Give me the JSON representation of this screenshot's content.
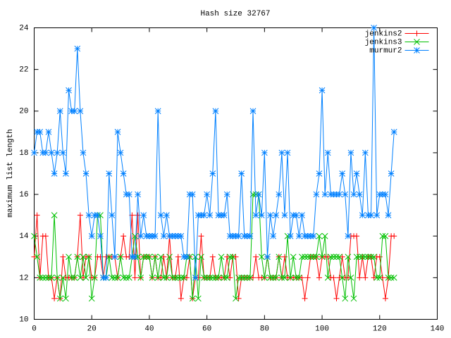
{
  "chart_data": {
    "type": "line",
    "title": "Hash size 32767",
    "ylabel": "maximum list length",
    "x": [
      0,
      1,
      2,
      3,
      4,
      5,
      6,
      7,
      8,
      9,
      10,
      11,
      12,
      13,
      14,
      15,
      16,
      17,
      18,
      19,
      20,
      21,
      22,
      23,
      24,
      25,
      26,
      27,
      28,
      29,
      30,
      31,
      32,
      33,
      34,
      35,
      36,
      37,
      38,
      39,
      40,
      41,
      42,
      43,
      44,
      45,
      46,
      47,
      48,
      49,
      50,
      51,
      52,
      53,
      54,
      55,
      56,
      57,
      58,
      59,
      60,
      61,
      62,
      63,
      64,
      65,
      66,
      67,
      68,
      69,
      70,
      71,
      72,
      73,
      74,
      75,
      76,
      77,
      78,
      79,
      80,
      81,
      82,
      83,
      84,
      85,
      86,
      87,
      88,
      89,
      90,
      91,
      92,
      93,
      94,
      95,
      96,
      97,
      98,
      99,
      100,
      101,
      102,
      103,
      104,
      105,
      106,
      107,
      108,
      109,
      110,
      111,
      112,
      113,
      114,
      115,
      116,
      117,
      118,
      119,
      120,
      121,
      122,
      123,
      124,
      125
    ],
    "xlim": [
      0,
      140
    ],
    "xticks": [
      0,
      20,
      40,
      60,
      80,
      100,
      120,
      140
    ],
    "ylim": [
      10,
      24
    ],
    "yticks": [
      10,
      12,
      14,
      16,
      18,
      20,
      22,
      24
    ],
    "legend": "top-right",
    "series": [
      {
        "name": "jenkins2",
        "color": "#ff0000",
        "marker": "plus",
        "values": [
          13,
          15,
          12,
          14,
          14,
          12,
          12,
          11,
          12,
          11,
          13,
          12,
          12,
          12,
          12,
          13,
          15,
          12,
          13,
          13,
          12,
          12,
          13,
          13,
          12,
          13,
          13,
          13,
          13,
          12,
          13,
          14,
          13,
          13,
          15,
          12,
          15,
          12,
          13,
          13,
          13,
          12,
          13,
          12,
          12,
          13,
          12,
          14,
          12,
          12,
          13,
          11,
          12,
          12,
          13,
          11,
          12,
          12,
          14,
          12,
          12,
          12,
          13,
          12,
          12,
          12,
          12,
          13,
          12,
          13,
          13,
          11,
          12,
          12,
          12,
          12,
          12,
          13,
          12,
          12,
          12,
          13,
          12,
          12,
          12,
          13,
          12,
          13,
          12,
          12,
          12,
          12,
          12,
          12,
          11,
          12,
          13,
          13,
          13,
          12,
          13,
          13,
          13,
          12,
          12,
          11,
          12,
          13,
          12,
          12,
          14,
          14,
          14,
          12,
          13,
          12,
          13,
          13,
          12,
          13,
          13,
          12,
          11,
          12,
          14,
          14
        ]
      },
      {
        "name": "jenkins3",
        "color": "#00c000",
        "marker": "cross",
        "values": [
          14,
          13,
          12,
          12,
          12,
          12,
          12,
          15,
          12,
          11,
          12,
          11,
          13,
          12,
          12,
          13,
          12,
          13,
          12,
          13,
          11,
          12,
          15,
          15,
          12,
          12,
          13,
          12,
          12,
          12,
          13,
          12,
          12,
          12,
          13,
          14,
          13,
          12,
          13,
          13,
          13,
          12,
          13,
          12,
          13,
          12,
          12,
          13,
          12,
          12,
          12,
          12,
          12,
          13,
          13,
          11,
          13,
          11,
          13,
          12,
          12,
          12,
          12,
          12,
          12,
          13,
          12,
          12,
          13,
          13,
          11,
          12,
          12,
          12,
          12,
          12,
          16,
          16,
          16,
          13,
          12,
          13,
          12,
          12,
          12,
          13,
          12,
          12,
          14,
          12,
          13,
          12,
          12,
          13,
          13,
          13,
          13,
          13,
          13,
          14,
          13,
          14,
          12,
          13,
          13,
          13,
          13,
          12,
          11,
          13,
          12,
          11,
          13,
          13,
          13,
          13,
          13,
          13,
          13,
          12,
          12,
          14,
          14,
          12,
          12,
          12
        ]
      },
      {
        "name": "murmur2",
        "color": "#0080ff",
        "marker": "star",
        "values": [
          18,
          19,
          19,
          18,
          18,
          19,
          18,
          17,
          18,
          20,
          18,
          17,
          21,
          20,
          20,
          23,
          20,
          18,
          17,
          15,
          14,
          15,
          15,
          14,
          12,
          12,
          17,
          15,
          13,
          19,
          18,
          17,
          16,
          16,
          13,
          13,
          16,
          14,
          15,
          14,
          14,
          14,
          14,
          20,
          15,
          14,
          15,
          14,
          14,
          14,
          14,
          14,
          13,
          13,
          16,
          16,
          12,
          15,
          15,
          15,
          16,
          15,
          17,
          20,
          15,
          15,
          15,
          16,
          14,
          14,
          14,
          14,
          17,
          14,
          14,
          14,
          20,
          15,
          16,
          15,
          18,
          13,
          15,
          14,
          15,
          16,
          18,
          15,
          18,
          14,
          15,
          15,
          14,
          15,
          14,
          14,
          14,
          14,
          16,
          17,
          21,
          16,
          18,
          16,
          16,
          16,
          16,
          17,
          16,
          14,
          18,
          16,
          17,
          16,
          15,
          18,
          15,
          15,
          24,
          15,
          16,
          16,
          16,
          15,
          17,
          19
        ]
      }
    ]
  }
}
